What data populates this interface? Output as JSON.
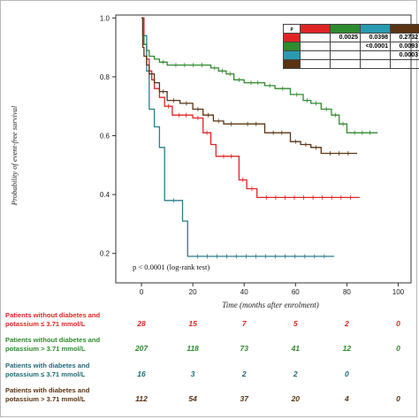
{
  "chart_data": {
    "type": "line",
    "subtype": "kaplan-meier",
    "title": "",
    "xlabel": "Time (months after enrolment)",
    "ylabel": "Probability of event-free survival",
    "xlim": [
      -10,
      105
    ],
    "ylim": [
      0.1,
      1.01
    ],
    "xticks": [
      "0",
      "20",
      "40",
      "60",
      "80",
      "100"
    ],
    "yticks": [
      "0.2",
      "0.4",
      "0.6",
      "0.8",
      "1.0"
    ],
    "annotation": "p < 0.0001 (log-rank test)",
    "series": [
      {
        "color": "#e02424",
        "x": [
          0,
          1,
          2,
          3,
          4,
          5,
          7,
          9,
          12,
          20,
          24,
          27,
          29,
          38,
          41,
          45,
          85
        ],
        "y": [
          1.0,
          0.91,
          0.86,
          0.82,
          0.79,
          0.76,
          0.73,
          0.7,
          0.67,
          0.66,
          0.61,
          0.57,
          0.53,
          0.45,
          0.42,
          0.39,
          0.39
        ]
      },
      {
        "color": "#2e8b2e",
        "x": [
          0,
          0.5,
          1,
          2,
          3,
          5,
          7,
          10,
          27,
          30,
          33,
          36,
          40,
          48,
          52,
          58,
          63,
          66,
          70,
          74,
          77,
          80,
          92
        ],
        "y": [
          1.0,
          0.94,
          0.91,
          0.89,
          0.87,
          0.86,
          0.85,
          0.84,
          0.83,
          0.82,
          0.81,
          0.79,
          0.78,
          0.77,
          0.76,
          0.74,
          0.72,
          0.71,
          0.69,
          0.67,
          0.64,
          0.61,
          0.61
        ]
      },
      {
        "color": "#2a7d8c",
        "x": [
          0,
          0.5,
          2,
          3,
          5,
          7,
          9,
          16,
          18,
          75
        ],
        "y": [
          1.0,
          0.94,
          0.82,
          0.69,
          0.63,
          0.56,
          0.38,
          0.31,
          0.19,
          0.19
        ]
      },
      {
        "color": "#5a3412",
        "x": [
          0,
          0.5,
          1,
          2,
          3,
          5,
          7,
          10,
          15,
          20,
          24,
          28,
          32,
          38,
          48,
          58,
          62,
          66,
          70,
          84
        ],
        "y": [
          1.0,
          0.9,
          0.87,
          0.84,
          0.81,
          0.78,
          0.75,
          0.72,
          0.71,
          0.69,
          0.67,
          0.65,
          0.64,
          0.64,
          0.61,
          0.58,
          0.57,
          0.56,
          0.54,
          0.54
        ]
      }
    ]
  },
  "pvalue_table": {
    "header": "p",
    "rows": [
      {
        "color": "#e02424",
        "cells": [
          "",
          "0.0025",
          "0.0398",
          "0.2732"
        ]
      },
      {
        "color": "#2e8b2e",
        "cells": [
          "",
          "",
          "<0.0001",
          "0.0093"
        ]
      },
      {
        "color": "#2a9ab0",
        "cells": [
          "",
          "",
          "",
          "0.0003"
        ]
      },
      {
        "color": "#5a3412",
        "cells": [
          "",
          "",
          "",
          ""
        ]
      }
    ],
    "header_colors": [
      "#e02424",
      "#2e8b2e",
      "#2a9ab0",
      "#5a3412"
    ]
  },
  "risk_table": [
    {
      "label": "Patients without diabetes and potassium ≤ 3.71 mmol/L",
      "color": "#e02424",
      "numbers": [
        "28",
        "15",
        "7",
        "5",
        "2",
        "0"
      ]
    },
    {
      "label": "Patients without diabetes and potassium > 3.71 mmol/L",
      "color": "#2e8b2e",
      "numbers": [
        "207",
        "118",
        "73",
        "41",
        "12",
        "0"
      ]
    },
    {
      "label": "Patients with diabetes and potassium ≤ 3.71 mmol/L",
      "color": "#1f6b78",
      "numbers": [
        "16",
        "3",
        "2",
        "2",
        "0",
        ""
      ]
    },
    {
      "label": "Patients with diabetes and potassium > 3.71 mmol/L",
      "color": "#5a3412",
      "numbers": [
        "112",
        "54",
        "37",
        "20",
        "4",
        "0"
      ]
    }
  ]
}
